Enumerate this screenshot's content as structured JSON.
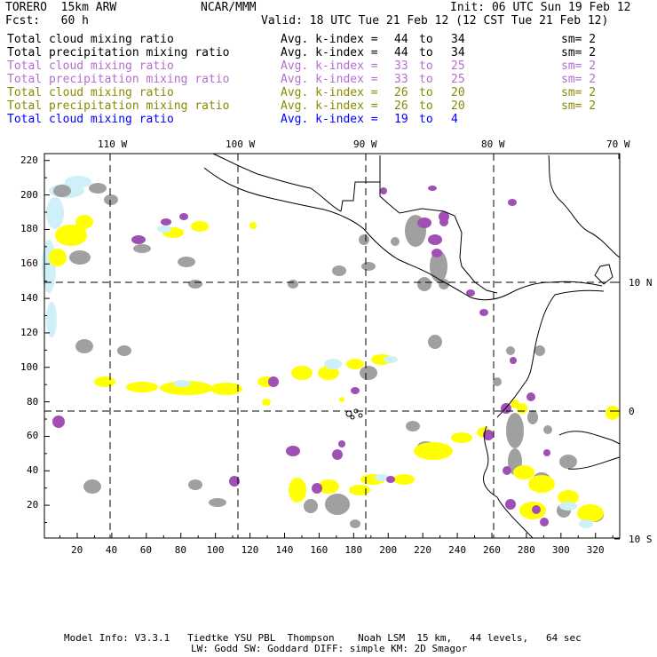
{
  "header": {
    "model": "TORERO  15km ARW",
    "center": "NCAR/MMM",
    "init": "Init: 06 UTC Sun 19 Feb 12",
    "fcst": "Fcst:   60 h",
    "valid": "Valid: 18 UTC Tue 21 Feb 12 (12 CST Tue 21 Feb 12)"
  },
  "legend": [
    {
      "field": "Total cloud mixing ratio",
      "avg": "Avg. k-index =",
      "k1": "44",
      "to": "to",
      "k2": "34",
      "sm": "sm= 2",
      "color": "#000000"
    },
    {
      "field": "Total precipitation mixing ratio",
      "avg": "Avg. k-index =",
      "k1": "44",
      "to": "to",
      "k2": "34",
      "sm": "sm= 2",
      "color": "#000000"
    },
    {
      "field": "Total cloud mixing ratio",
      "avg": "Avg. k-index =",
      "k1": "33",
      "to": "to",
      "k2": "25",
      "sm": "sm= 2",
      "color": "#b36fcf"
    },
    {
      "field": "Total precipitation mixing ratio",
      "avg": "Avg. k-index =",
      "k1": "33",
      "to": "to",
      "k2": "25",
      "sm": "sm= 2",
      "color": "#b36fcf"
    },
    {
      "field": "Total cloud mixing ratio",
      "avg": "Avg. k-index =",
      "k1": "26",
      "to": "to",
      "k2": "20",
      "sm": "sm= 2",
      "color": "#8a8a00"
    },
    {
      "field": "Total precipitation mixing ratio",
      "avg": "Avg. k-index =",
      "k1": "26",
      "to": "to",
      "k2": "20",
      "sm": "sm= 2",
      "color": "#8a8a00"
    },
    {
      "field": "Total cloud mixing ratio",
      "avg": "Avg. k-index =",
      "k1": "19",
      "to": "to",
      "k2": "4",
      "sm": "",
      "color": "#0000ff"
    }
  ],
  "axes": {
    "top_lon": [
      "110 W",
      "100 W",
      "90 W",
      "80 W",
      "70 W"
    ],
    "right_lat": [
      "10 N",
      "0",
      "10 S"
    ],
    "left_y": [
      "220",
      "200",
      "180",
      "160",
      "140",
      "120",
      "100",
      "80",
      "60",
      "40",
      "20"
    ],
    "bottom_x": [
      "20",
      "40",
      "60",
      "80",
      "100",
      "120",
      "140",
      "160",
      "180",
      "200",
      "220",
      "240",
      "260",
      "280",
      "300",
      "320"
    ]
  },
  "footer": {
    "line1": "Model Info: V3.3.1   Tiedtke YSU PBL  Thompson    Noah LSM  15 km,   44 levels,   64 sec",
    "line2": "LW: Godd SW: Goddard DIFF: simple KM: 2D Smagor"
  },
  "colors": {
    "gray": "#a0a0a0",
    "purple": "#a050b4",
    "yellow": "#ffff00",
    "lightcyan": "#d0f0f8",
    "coast": "#000000"
  }
}
